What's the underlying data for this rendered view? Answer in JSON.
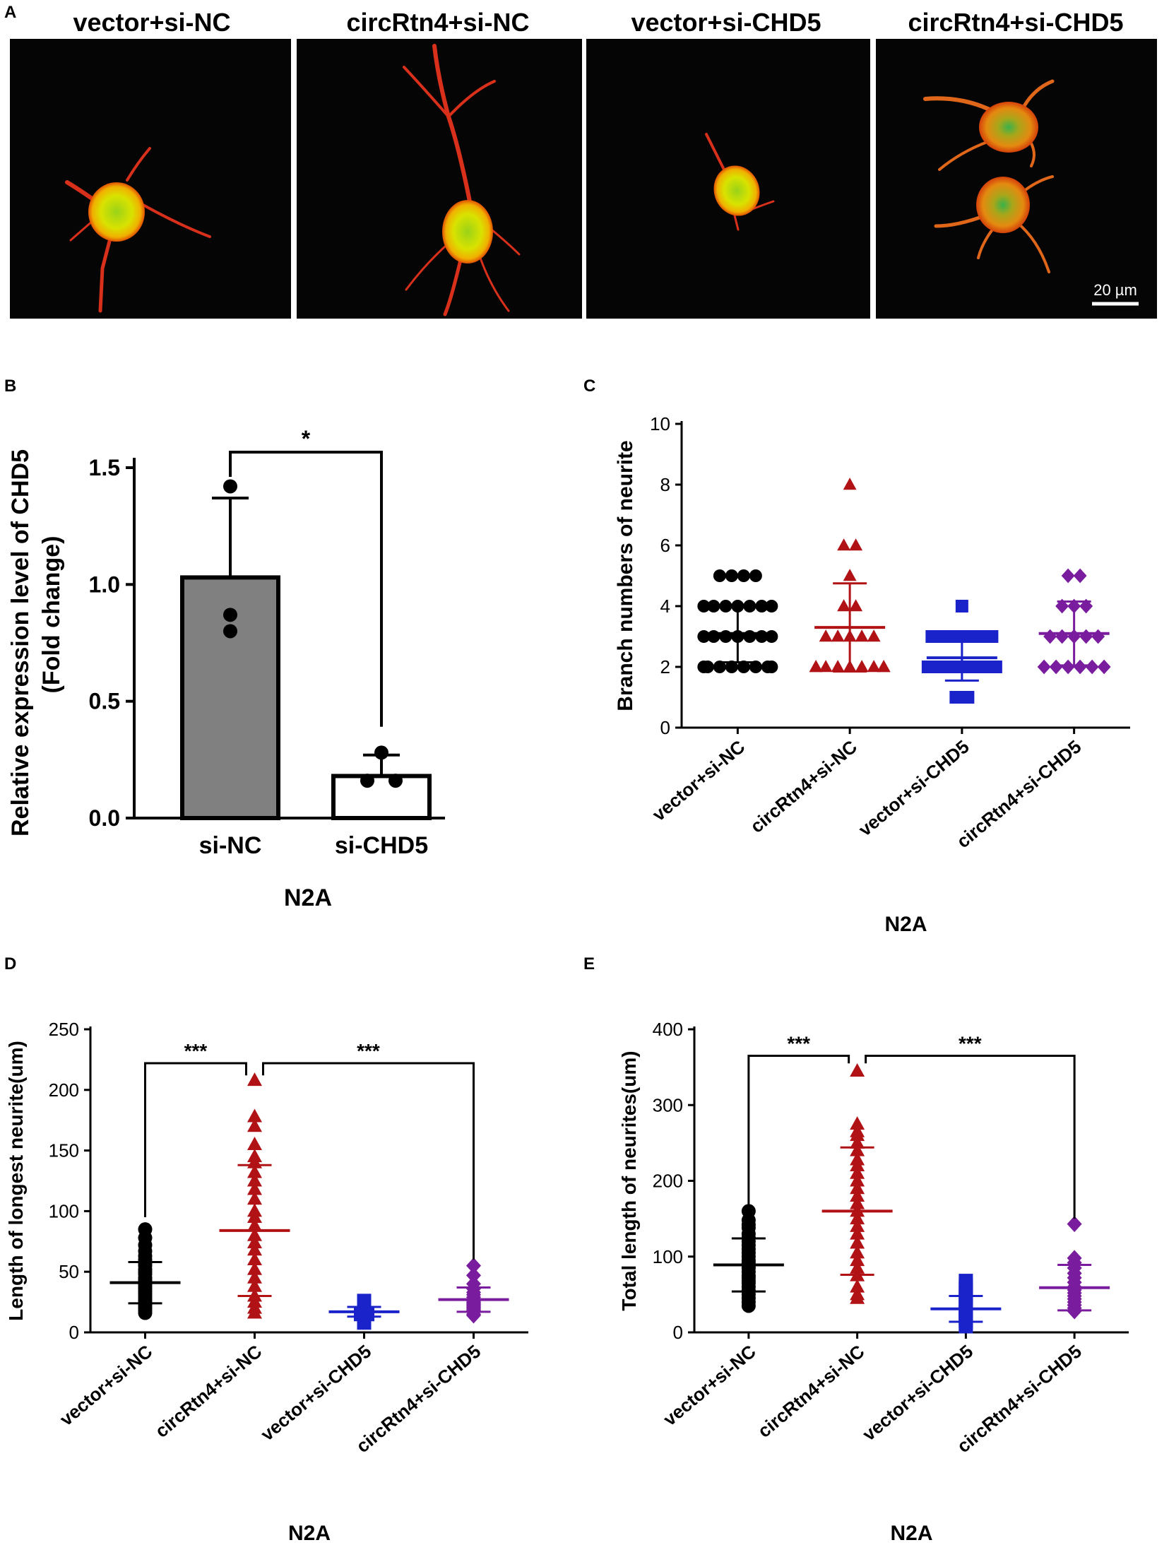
{
  "panels": {
    "A": {
      "letter": "A",
      "images": [
        {
          "title": "vector+si-NC",
          "cell": "single-cell-few-neurites"
        },
        {
          "title": "circRtn4+si-NC",
          "cell": "single-cell-long-branched-neurites"
        },
        {
          "title": "vector+si-CHD5",
          "cell": "single-cell-short-neurites"
        },
        {
          "title": "circRtn4+si-CHD5",
          "cell": "two-cells-short-neurites"
        }
      ],
      "scale_bar": "20 µm"
    },
    "B": {
      "letter": "B"
    },
    "C": {
      "letter": "C"
    },
    "D": {
      "letter": "D"
    },
    "E": {
      "letter": "E"
    }
  },
  "colors": {
    "group1": "#000000",
    "group2": "#b01216",
    "group3": "#1a22c9",
    "group4": "#7a1c9e",
    "bar1": "#808080",
    "bar2": "#ffffff",
    "image_bg": "#050505"
  },
  "chart_data": [
    {
      "id": "B",
      "type": "bar",
      "title": "",
      "ylabel_lines": [
        "Relative expression level of CHD5",
        "(Fold change)"
      ],
      "xlabel": "N2A",
      "categories": [
        "si-NC",
        "si-CHD5"
      ],
      "values": [
        1.03,
        0.18
      ],
      "errors": [
        0.34,
        0.09
      ],
      "points": [
        [
          1.42,
          0.87,
          0.8
        ],
        [
          0.28,
          0.16,
          0.16
        ]
      ],
      "ylim": [
        0,
        1.5
      ],
      "yticks": [
        "0.0",
        "0.5",
        "1.0",
        "1.5"
      ],
      "significance": [
        {
          "from": 0,
          "to": 1,
          "label": "*"
        }
      ]
    },
    {
      "id": "C",
      "type": "scatter",
      "ylabel": "Branch numbers of neurite",
      "xlabel": "N2A",
      "categories": [
        "vector+si-NC",
        "circRtn4+si-NC",
        "vector+si-CHD5",
        "circRtn4+si-CHD5"
      ],
      "markers": [
        "circle",
        "triangle",
        "square",
        "diamond"
      ],
      "means": [
        3.1,
        3.3,
        2.3,
        3.1
      ],
      "sd": [
        0.95,
        1.45,
        0.75,
        1.05
      ],
      "points": [
        [
          5,
          5,
          5,
          5,
          4,
          4,
          4,
          4,
          4,
          4,
          4,
          3,
          3,
          3,
          3,
          3,
          3,
          3,
          2,
          2,
          2,
          2,
          2,
          2,
          2,
          2
        ],
        [
          8,
          6,
          6,
          5,
          4,
          4,
          3,
          3,
          3,
          3,
          3,
          2,
          2,
          2,
          2,
          2,
          2,
          2,
          2,
          2
        ],
        [
          4,
          3,
          3,
          3,
          3,
          3,
          3,
          2,
          2,
          2,
          2,
          2,
          2,
          2,
          1,
          1
        ],
        [
          5,
          5,
          4,
          4,
          4,
          3,
          3,
          3,
          3,
          3,
          2,
          2,
          2,
          2,
          2,
          2
        ]
      ],
      "ylim": [
        0,
        10
      ],
      "yticks": [
        "0",
        "2",
        "4",
        "6",
        "8",
        "10"
      ],
      "significance": []
    },
    {
      "id": "D",
      "type": "scatter",
      "ylabel": "Length of longest neurite(um)",
      "xlabel": "N2A",
      "categories": [
        "vector+si-NC",
        "circRtn4+si-NC",
        "vector+si-CHD5",
        "circRtn4+si-CHD5"
      ],
      "markers": [
        "circle",
        "triangle",
        "square",
        "diamond"
      ],
      "means": [
        41,
        84,
        17,
        27
      ],
      "sd": [
        17,
        54,
        4,
        10
      ],
      "points": [
        [
          85,
          78,
          72,
          67,
          63,
          60,
          57,
          55,
          52,
          50,
          48,
          45,
          43,
          41,
          40,
          38,
          36,
          34,
          32,
          30,
          28,
          26,
          24,
          22,
          20,
          18,
          16
        ],
        [
          208,
          178,
          170,
          155,
          145,
          140,
          132,
          125,
          118,
          110,
          100,
          95,
          88,
          80,
          74,
          68,
          60,
          52,
          45,
          38,
          30,
          25,
          20,
          16
        ],
        [
          26,
          25,
          24,
          23,
          22,
          21,
          20,
          19,
          18,
          17,
          16,
          15,
          15,
          14,
          13,
          12,
          11,
          10,
          9,
          8
        ],
        [
          55,
          47,
          40,
          36,
          33,
          31,
          29,
          27,
          26,
          25,
          24,
          23,
          22,
          21,
          20,
          19,
          18,
          17,
          15,
          14
        ]
      ],
      "ylim": [
        0,
        250
      ],
      "yticks": [
        "0",
        "50",
        "100",
        "150",
        "200",
        "250"
      ],
      "significance": [
        {
          "from": 0,
          "to": 1,
          "label": "***"
        },
        {
          "from": 1,
          "to": 3,
          "label": "***"
        }
      ]
    },
    {
      "id": "E",
      "type": "scatter",
      "ylabel": "Total length of neurites(um)",
      "xlabel": "N2A",
      "categories": [
        "vector+si-NC",
        "circRtn4+si-NC",
        "vector+si-CHD5",
        "circRtn4+si-CHD5"
      ],
      "markers": [
        "circle",
        "triangle",
        "square",
        "diamond"
      ],
      "means": [
        89,
        160,
        31,
        59
      ],
      "sd": [
        35,
        84,
        17,
        30
      ],
      "points": [
        [
          160,
          148,
          142,
          138,
          130,
          125,
          120,
          115,
          110,
          105,
          100,
          95,
          92,
          88,
          85,
          80,
          75,
          72,
          68,
          65,
          60,
          55,
          50,
          45,
          40,
          35
        ],
        [
          345,
          275,
          265,
          260,
          250,
          240,
          228,
          220,
          210,
          200,
          190,
          180,
          170,
          160,
          150,
          140,
          130,
          118,
          105,
          95,
          85,
          75,
          60,
          50,
          45
        ],
        [
          68,
          62,
          58,
          52,
          48,
          45,
          42,
          38,
          35,
          32,
          30,
          28,
          26,
          24,
          22,
          20,
          18,
          15,
          12,
          8
        ],
        [
          143,
          98,
          92,
          85,
          78,
          72,
          66,
          60,
          56,
          52,
          48,
          44,
          40,
          36,
          32,
          28
        ]
      ],
      "ylim": [
        0,
        400
      ],
      "yticks": [
        "0",
        "100",
        "200",
        "300",
        "400"
      ],
      "significance": [
        {
          "from": 0,
          "to": 1,
          "label": "***"
        },
        {
          "from": 1,
          "to": 3,
          "label": "***"
        }
      ]
    }
  ]
}
